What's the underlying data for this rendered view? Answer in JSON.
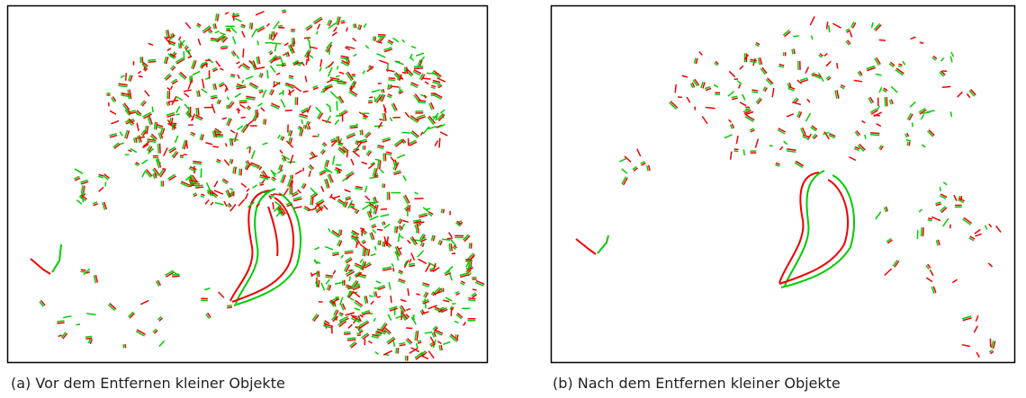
{
  "panels": [
    {
      "caption": "(a) Vor dem Entfernen kleiner Objekte"
    },
    {
      "caption": "(b) Nach dem Entfernen kleiner Objekte"
    }
  ]
}
